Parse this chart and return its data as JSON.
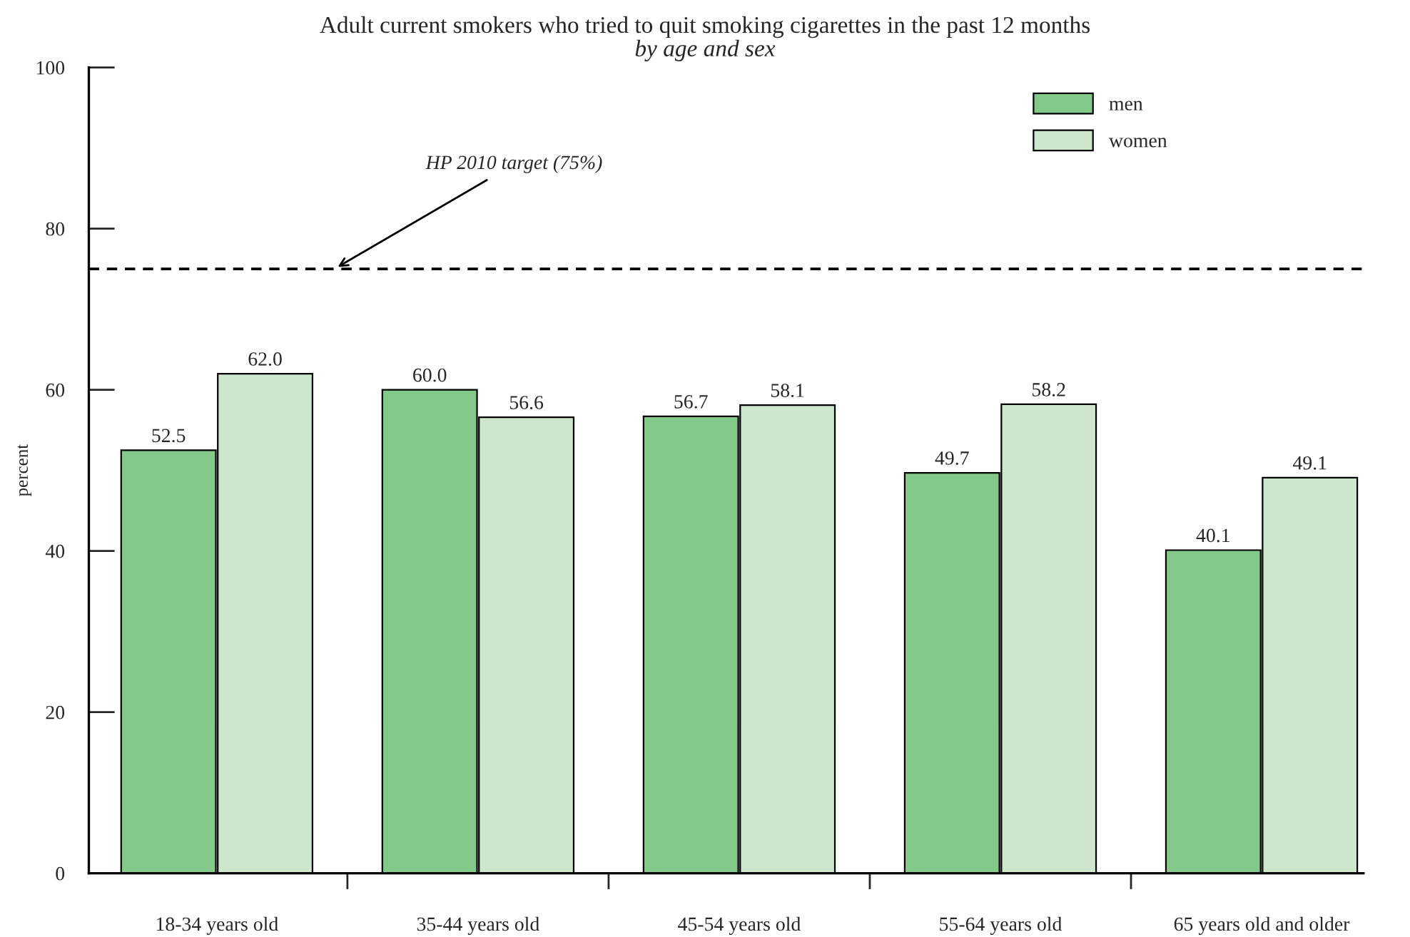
{
  "chart_data": {
    "type": "bar",
    "title": "Adult current smokers who tried to quit smoking cigarettes in the past 12 months",
    "subtitle": "by age and sex",
    "ylabel": "percent",
    "categories": [
      "18-34 years old",
      "35-44 years old",
      "45-54 years old",
      "55-64 years old",
      "65 years old and older"
    ],
    "series": [
      {
        "name": "men",
        "color": "#82c98a",
        "values": [
          52.5,
          60.0,
          56.7,
          49.7,
          40.1
        ],
        "value_labels": [
          "52.5",
          "60.0",
          "56.7",
          "49.7",
          "40.1"
        ]
      },
      {
        "name": "women",
        "color": "#cce7cc",
        "values": [
          62.0,
          56.6,
          58.1,
          58.2,
          49.1
        ],
        "value_labels": [
          "62.0",
          "56.6",
          "58.1",
          "58.2",
          "49.1"
        ]
      }
    ],
    "ylim": [
      0,
      100
    ],
    "yticks": [
      0,
      20,
      40,
      60,
      80,
      100
    ],
    "ref_lines": [
      {
        "axis": "y",
        "value": 75,
        "label": "HP 2010 target (75%)",
        "color": "#000000",
        "line_style": "dashed"
      }
    ],
    "legend": "top right",
    "grid": false
  }
}
